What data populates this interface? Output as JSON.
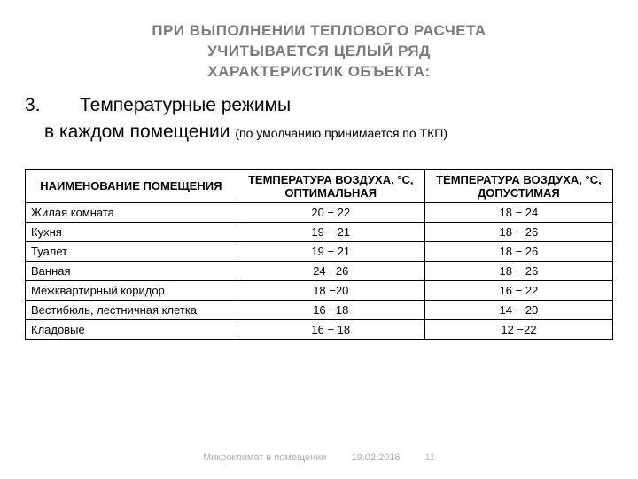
{
  "title_lines": [
    "ПРИ ВЫПОЛНЕНИИ ТЕПЛОВОГО РАСЧЕТА",
    "УЧИТЫВАЕТСЯ ЦЕЛЫЙ РЯД",
    "ХАРАКТЕРИСТИК ОБЪЕКТА:"
  ],
  "heading": {
    "number": "3.",
    "text": "Температурные режимы"
  },
  "subline": {
    "main": "в каждом помещении ",
    "small": "(по умолчанию принимается по ТКП)"
  },
  "table": {
    "columns": [
      "НАИМЕНОВАНИЕ ПОМЕЩЕНИЯ",
      "ТЕМПЕРАТУРА ВОЗДУХА, °С, ОПТИМАЛЬНАЯ",
      "ТЕМПЕРАТУРА ВОЗДУХА, °С, ДОПУСТИМАЯ"
    ],
    "rows": [
      {
        "room": "Жилая комната",
        "optimal": "20 − 22",
        "admissible": "18 − 24"
      },
      {
        "room": "Кухня",
        "optimal": "19 − 21",
        "admissible": "18 − 26"
      },
      {
        "room": "Туалет",
        "optimal": "19 − 21",
        "admissible": "18 − 26"
      },
      {
        "room": "Ванная",
        "optimal": "24 −26",
        "admissible": "18 − 26"
      },
      {
        "room": "Межквартирный коридор",
        "optimal": "18 −20",
        "admissible": "16 − 22"
      },
      {
        "room": "Вестибюль, лестничная клетка",
        "optimal": "16 −18",
        "admissible": "14 − 20"
      },
      {
        "room": "Кладовые",
        "optimal": "16 − 18",
        "admissible": "12 −22"
      }
    ]
  },
  "footer": {
    "left": "Микроклимат в помещении",
    "date": "19.02.2016",
    "page": "11"
  },
  "colors": {
    "title": "#7a7a7a",
    "text": "#000000",
    "border": "#000000",
    "footer": "#b0b0b0",
    "background": "#ffffff"
  }
}
